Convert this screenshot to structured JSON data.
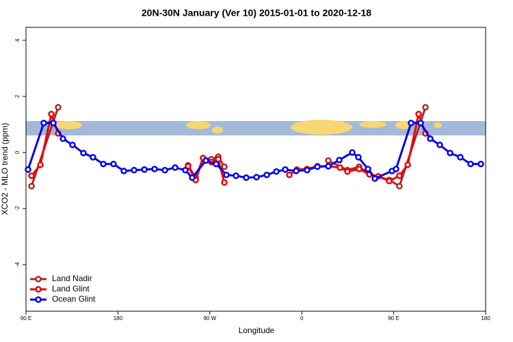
{
  "chart_data": {
    "type": "line",
    "title": "20N-30N January (Ver 10)   2015-01-01 to 2020-12-18",
    "x_label": "Longitude",
    "y_label": "XCO2 - MLO trend (ppm)",
    "xlim": [
      90,
      540
    ],
    "xticks": [
      {
        "value": 90,
        "label": "90 E"
      },
      180,
      {
        "value": 270,
        "label": "90 W"
      },
      {
        "value": 360,
        "label": "0"
      },
      {
        "value": 450,
        "label": "90 E"
      },
      {
        "value": 540,
        "label": "180"
      }
    ],
    "ylim": [
      -5.66,
      4.46
    ],
    "yticks": [
      -4,
      -2,
      0,
      2,
      4
    ],
    "legend": "bottom-left",
    "series": [
      {
        "name": "Land Nadir",
        "color": "#a52a2a",
        "x": [
          95.4,
          121.5,
          null,
          248.7,
          256.1,
          263.4,
          271.5,
          278.2,
          284.2,
          null,
          386.0,
          404.7,
          416.1,
          426.2,
          445.6,
          455.6,
          481.1
        ],
        "values": [
          -1.2,
          1.61,
          null,
          -0.46,
          -0.9,
          -0.2,
          -0.24,
          -0.15,
          -0.51,
          null,
          -0.29,
          -0.63,
          -0.51,
          -0.76,
          -0.98,
          -1.2,
          1.61
        ]
      },
      {
        "name": "Land Glint",
        "color": "#ee0000",
        "x": [
          95.4,
          104.1,
          114.8,
          121.5,
          null,
          248.7,
          256.1,
          263.4,
          271.5,
          278.2,
          284.2,
          null,
          347.8,
          355.2,
          365.2,
          375.3,
          386.0,
          397.4,
          404.7,
          416.1,
          426.2,
          434.9,
          445.6,
          455.6,
          463.7,
          474.4,
          481.1
        ],
        "values": [
          -0.83,
          -0.44,
          1.37,
          0.68,
          null,
          -0.49,
          -0.98,
          -0.2,
          -0.34,
          -0.24,
          -1.07,
          null,
          -0.8,
          -0.61,
          -0.59,
          -0.49,
          -0.49,
          -0.54,
          -0.68,
          -0.59,
          -0.78,
          -0.85,
          -1.02,
          -0.83,
          -0.44,
          1.37,
          0.68
        ]
      },
      {
        "name": "Ocean Glint",
        "color": "#0000ee",
        "x": [
          92.0,
          107.4,
          116.8,
          126.2,
          135.5,
          146.2,
          155.6,
          165.7,
          175.7,
          185.8,
          195.8,
          205.9,
          215.9,
          226.0,
          236.0,
          246.0,
          252.7,
          266.1,
          276.2,
          286.2,
          295.6,
          305.6,
          315.7,
          325.7,
          335.1,
          343.8,
          354.5,
          365.2,
          375.3,
          386.0,
          396.7,
          409.4,
          415.4,
          424.8,
          431.5,
          448.3,
          452.3,
          467.0,
          476.4,
          485.8,
          495.1,
          505.2,
          515.2,
          525.3,
          535.3
        ],
        "values": [
          -0.61,
          1.05,
          1.05,
          0.49,
          0.27,
          -0.02,
          -0.17,
          -0.41,
          -0.41,
          -0.66,
          -0.63,
          -0.61,
          -0.59,
          -0.63,
          -0.54,
          -0.63,
          -0.9,
          -0.29,
          -0.41,
          -0.8,
          -0.83,
          -0.9,
          -0.88,
          -0.8,
          -0.68,
          -0.61,
          -0.66,
          -0.63,
          -0.51,
          -0.49,
          -0.27,
          0.0,
          -0.17,
          -0.59,
          -0.93,
          -0.66,
          -0.59,
          1.05,
          1.05,
          0.49,
          0.27,
          -0.02,
          -0.17,
          -0.41,
          -0.41
        ]
      }
    ]
  }
}
